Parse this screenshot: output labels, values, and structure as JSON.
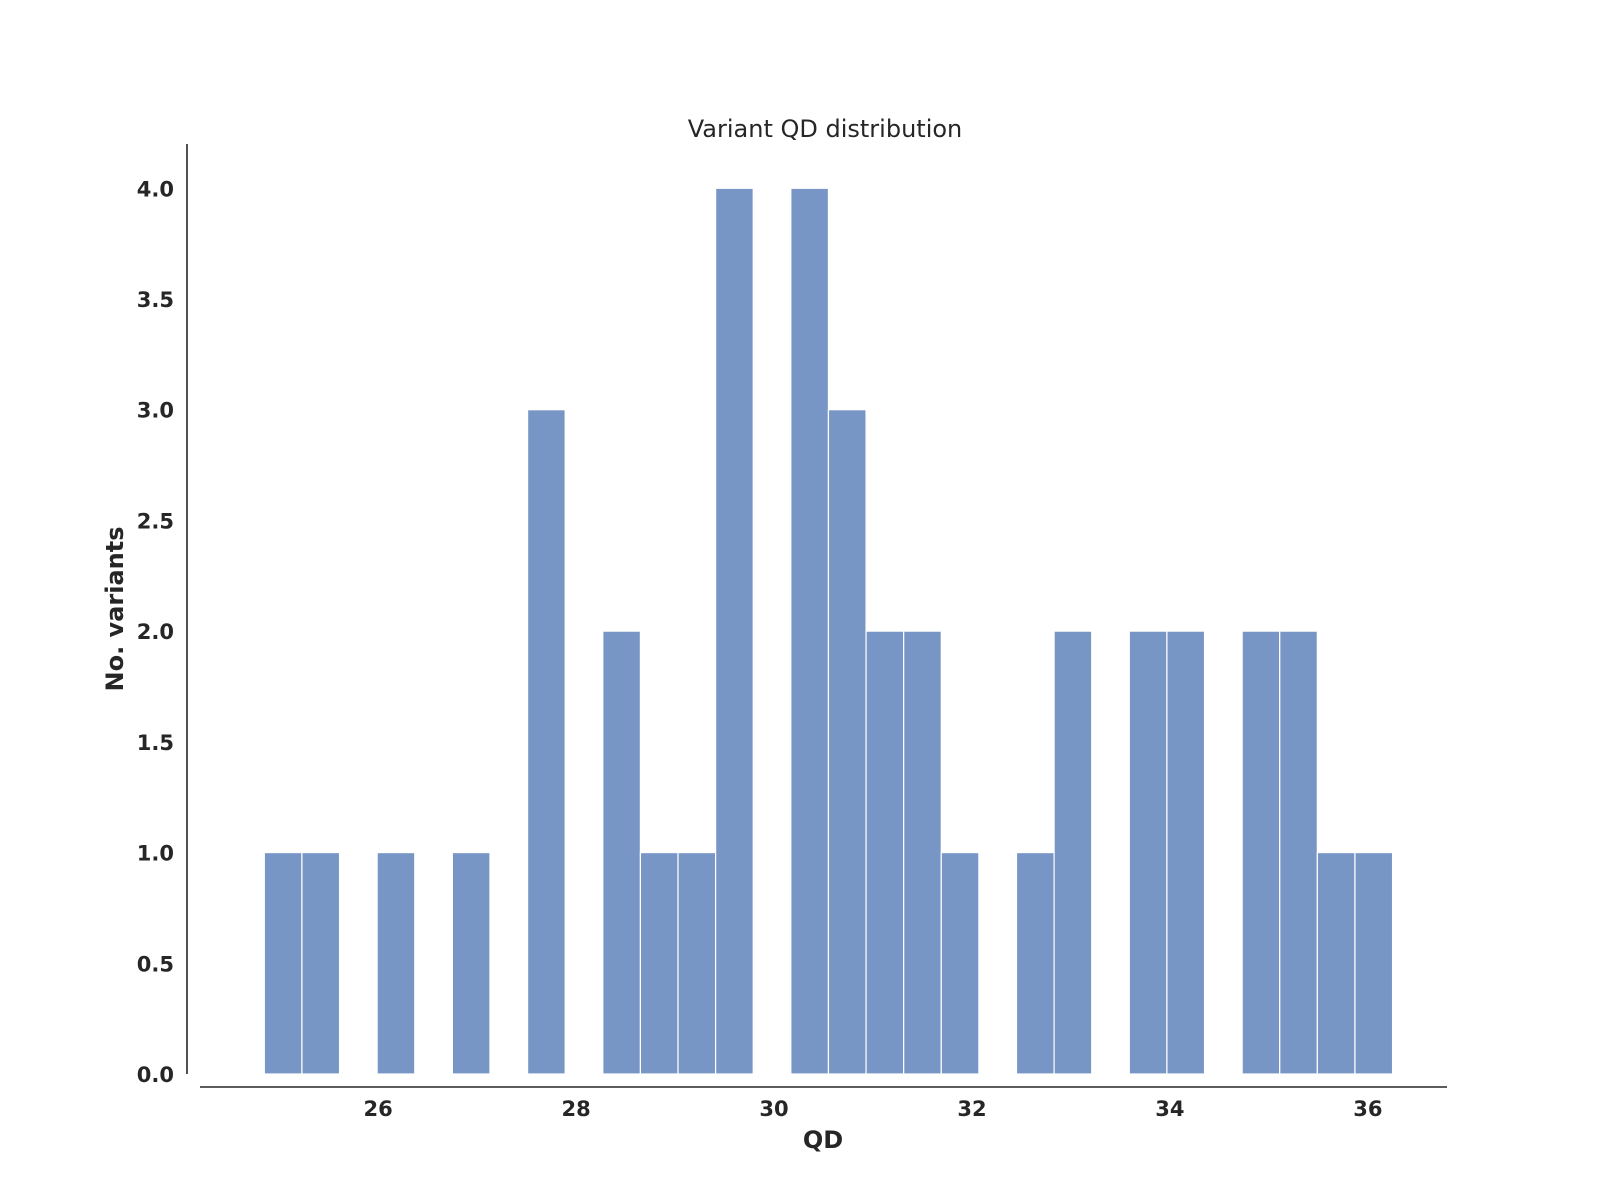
{
  "chart_data": {
    "type": "bar",
    "title": "Variant QD distribution",
    "xlabel": "QD",
    "ylabel": "No. variants",
    "bar_color": "#7896c5",
    "xlim": [
      24.2,
      36.8
    ],
    "ylim": [
      0,
      4.2
    ],
    "xticks": [
      26,
      28,
      30,
      32,
      34,
      36
    ],
    "yticks": [
      "0.0",
      "0.5",
      "1.0",
      "1.5",
      "2.0",
      "2.5",
      "3.0",
      "3.5",
      "4.0"
    ],
    "grid": false,
    "legend": "none",
    "bins": [
      {
        "start": 24.85,
        "end": 25.23,
        "count": 1
      },
      {
        "start": 25.23,
        "end": 25.61,
        "count": 1
      },
      {
        "start": 25.61,
        "end": 25.99,
        "count": 0
      },
      {
        "start": 25.99,
        "end": 26.37,
        "count": 1
      },
      {
        "start": 26.37,
        "end": 26.75,
        "count": 0
      },
      {
        "start": 26.75,
        "end": 27.13,
        "count": 1
      },
      {
        "start": 27.13,
        "end": 27.51,
        "count": 0
      },
      {
        "start": 27.51,
        "end": 27.89,
        "count": 3
      },
      {
        "start": 27.89,
        "end": 28.27,
        "count": 0
      },
      {
        "start": 28.27,
        "end": 28.65,
        "count": 2
      },
      {
        "start": 28.65,
        "end": 29.03,
        "count": 1
      },
      {
        "start": 29.03,
        "end": 29.41,
        "count": 1
      },
      {
        "start": 29.41,
        "end": 29.79,
        "count": 4
      },
      {
        "start": 29.79,
        "end": 30.17,
        "count": 0
      },
      {
        "start": 30.17,
        "end": 30.55,
        "count": 4
      },
      {
        "start": 30.55,
        "end": 30.93,
        "count": 3
      },
      {
        "start": 30.93,
        "end": 31.31,
        "count": 2
      },
      {
        "start": 31.31,
        "end": 31.69,
        "count": 2
      },
      {
        "start": 31.69,
        "end": 32.07,
        "count": 1
      },
      {
        "start": 32.07,
        "end": 32.45,
        "count": 0
      },
      {
        "start": 32.45,
        "end": 32.83,
        "count": 1
      },
      {
        "start": 32.83,
        "end": 33.21,
        "count": 2
      },
      {
        "start": 33.21,
        "end": 33.59,
        "count": 0
      },
      {
        "start": 33.59,
        "end": 33.97,
        "count": 2
      },
      {
        "start": 33.97,
        "end": 34.35,
        "count": 2
      },
      {
        "start": 34.35,
        "end": 34.73,
        "count": 0
      },
      {
        "start": 34.73,
        "end": 35.11,
        "count": 2
      },
      {
        "start": 35.11,
        "end": 35.49,
        "count": 2
      },
      {
        "start": 35.49,
        "end": 35.87,
        "count": 1
      },
      {
        "start": 35.87,
        "end": 36.25,
        "count": 1
      }
    ]
  }
}
